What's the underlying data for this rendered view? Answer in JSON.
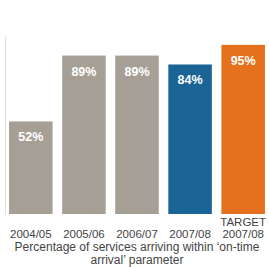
{
  "chart_data": {
    "type": "bar",
    "categories": [
      "2004/05",
      "2005/06",
      "2006/07",
      "2007/08",
      "TARGET 2007/08"
    ],
    "values": [
      52,
      89,
      89,
      84,
      95
    ],
    "value_labels": [
      "52%",
      "89%",
      "89%",
      "84%",
      "95%"
    ],
    "colors": [
      "#a59f95",
      "#a59f95",
      "#a59f95",
      "#1a6496",
      "#e5701e"
    ],
    "x_label": "Percentage of services arriving within ‘on-time arrival’ parameter",
    "ylim": [
      0,
      100
    ],
    "data_labels": true,
    "tick_labels": "x",
    "grid": false
  }
}
